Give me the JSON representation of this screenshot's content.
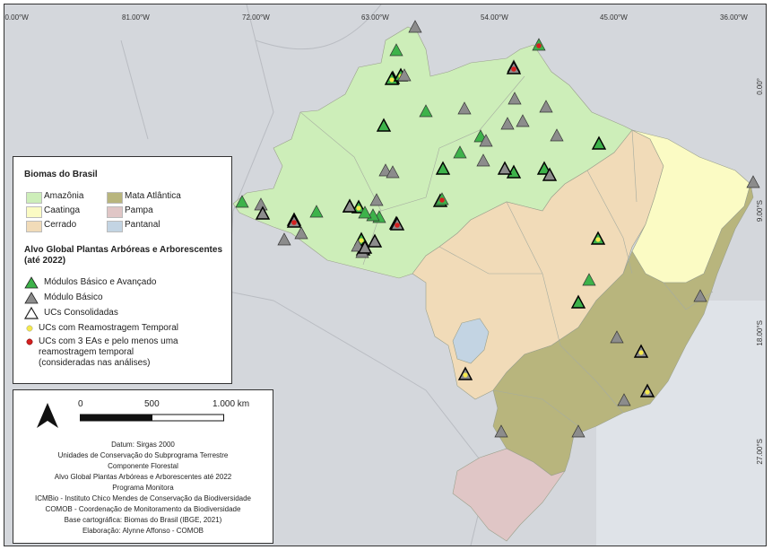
{
  "axis": {
    "lon_ticks": [
      "90.00°W",
      "81.00°W",
      "72.00°W",
      "63.00°W",
      "54.00°W",
      "45.00°W",
      "36.00°W"
    ],
    "lat_ticks": [
      "0.00°",
      "9.00°S",
      "18.00°S",
      "27.00°S"
    ]
  },
  "legend": {
    "biomes_title": "Biomas do Brasil",
    "biomes": [
      {
        "label": "Amazônia",
        "color": "#cdeeb9"
      },
      {
        "label": "Mata Atlântica",
        "color": "#b8b57d"
      },
      {
        "label": "Caatinga",
        "color": "#fbfbc4"
      },
      {
        "label": "Pampa",
        "color": "#e0c6c6"
      },
      {
        "label": "Cerrado",
        "color": "#f1dbb8"
      },
      {
        "label": "Pantanal",
        "color": "#c3d4e3"
      }
    ],
    "target_title_1": "Alvo Global Plantas Arbóreas e Arborescentes",
    "target_title_2": "(até 2022)",
    "symbols": [
      {
        "label": "Módulos Básico e Avançado",
        "color": "#3db24a"
      },
      {
        "label": "Módulo Básico",
        "color": "#8c8c8c"
      },
      {
        "label": "UCs Consolidadas",
        "color": "#ffffff"
      },
      {
        "label": "UCs com Reamostragem Temporal",
        "color": "#f5e94b"
      }
    ],
    "three_eas_lines": [
      "UCs com 3 EAs e pelo menos uma",
      "reamostragem temporal",
      "(consideradas nas análises)"
    ],
    "three_eas_color": "#d42020"
  },
  "scale": {
    "labels": [
      "0",
      "500",
      "1.000 km"
    ]
  },
  "credits": [
    "Datum: Sirgas 2000",
    "Unidades de Conservação do Subprograma Terrestre",
    "Componente Florestal",
    "Alvo Global Plantas Arbóreas e Arborescentes até 2022",
    "Programa Monitora",
    "ICMBio - Instituto Chico Mendes de Conservação da Biodiversidade",
    "COMOB - Coordenação de Monitoramento da Biodiversidade",
    "Base cartográfica: Biomas do Brasil (IBGE, 2021)",
    "Elaboração: Alynne Affonso - COMOB"
  ],
  "sites": [
    [
      "G",
      0,
      0,
      0
    ],
    [
      "G",
      0,
      0,
      1
    ],
    [
      "G",
      1,
      0,
      0
    ],
    [
      "G",
      0,
      0,
      0
    ],
    [
      "G",
      0,
      0,
      0
    ],
    [
      "G",
      1,
      0,
      0
    ],
    [
      "G",
      1,
      0,
      0
    ],
    [
      "G",
      1,
      0,
      0
    ],
    [
      "G",
      0,
      0,
      0
    ],
    [
      "G",
      1,
      0,
      0
    ],
    [
      "G",
      0,
      0,
      0
    ],
    [
      "G",
      0,
      0,
      0
    ],
    [
      "G",
      1,
      0,
      0
    ],
    [
      "G",
      1,
      1,
      0
    ],
    [
      "G",
      1,
      1,
      0
    ],
    [
      "G",
      1,
      0,
      0
    ],
    [
      "G",
      1,
      1,
      0
    ],
    [
      "G",
      0,
      0,
      0
    ],
    [
      "G",
      1,
      1,
      0
    ],
    [
      "G",
      0,
      0,
      0
    ],
    [
      "G",
      0,
      0,
      0
    ],
    [
      "G",
      1,
      0,
      0
    ],
    [
      "G",
      0,
      0,
      1
    ],
    [
      "G",
      0,
      0,
      1
    ],
    [
      "G",
      1,
      1,
      0
    ],
    [
      "G",
      1,
      1,
      0
    ],
    [
      "G",
      0,
      0,
      0
    ],
    [
      "G",
      1,
      1,
      0
    ],
    [
      "G",
      1,
      0,
      0
    ],
    [
      "M",
      0,
      0,
      0
    ],
    [
      "M",
      0,
      0,
      0
    ],
    [
      "M",
      0,
      0,
      0
    ],
    [
      "M",
      0,
      0,
      0
    ],
    [
      "M",
      0,
      0,
      0
    ],
    [
      "M",
      0,
      0,
      0
    ],
    [
      "M",
      0,
      0,
      0
    ],
    [
      "M",
      0,
      0,
      0
    ],
    [
      "M",
      0,
      0,
      0
    ],
    [
      "M",
      0,
      0,
      0
    ],
    [
      "M",
      1,
      0,
      0
    ],
    [
      "M",
      1,
      0,
      0
    ],
    [
      "M",
      0,
      0,
      0
    ],
    [
      "M",
      0,
      0,
      0
    ],
    [
      "M",
      0,
      0,
      0
    ],
    [
      "M",
      1,
      0,
      0
    ],
    [
      "M",
      1,
      0,
      0
    ],
    [
      "M",
      0,
      0,
      0
    ],
    [
      "M",
      1,
      0,
      0
    ],
    [
      "M",
      0,
      0,
      0
    ],
    [
      "M",
      0,
      0,
      0
    ],
    [
      "M",
      1,
      0,
      0
    ],
    [
      "M",
      0,
      0,
      0
    ],
    [
      "M",
      0,
      0,
      0
    ],
    [
      "M",
      1,
      0,
      0
    ],
    [
      "M",
      0,
      0,
      0
    ],
    [
      "M",
      0,
      0,
      0
    ],
    [
      "M",
      0,
      0,
      0
    ],
    [
      "M",
      0,
      0,
      0
    ],
    [
      "M",
      0,
      0,
      0
    ],
    [
      "M",
      1,
      1,
      0
    ],
    [
      "M",
      1,
      1,
      0
    ],
    [
      "M",
      1,
      1,
      0
    ],
    [
      "M",
      0,
      0,
      0
    ],
    [
      "M",
      1,
      0,
      1
    ],
    [
      "M",
      1,
      0,
      1
    ],
    [
      "M",
      1,
      0,
      1
    ]
  ]
}
